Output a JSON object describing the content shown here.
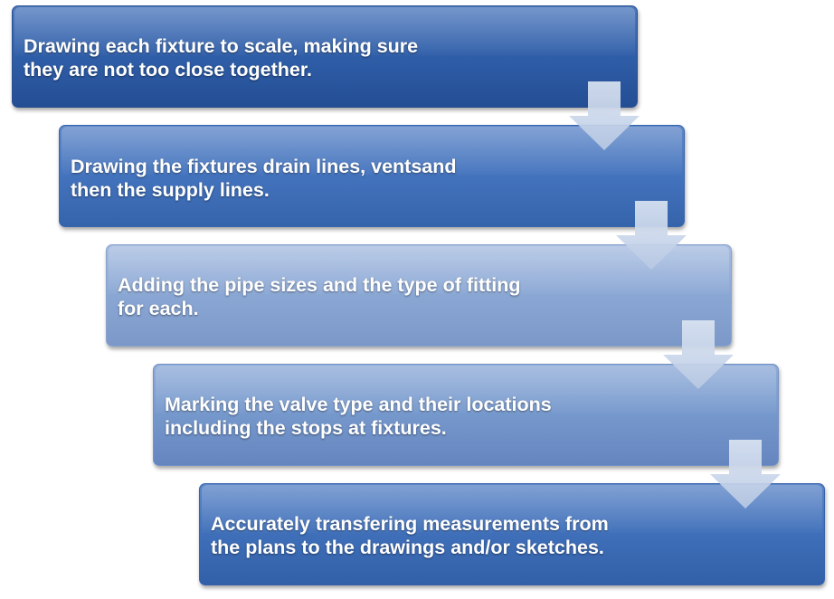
{
  "steps": [
    {
      "text": "Drawing each fixture to scale, making sure\nthey are not too close together."
    },
    {
      "text": "Drawing the fixtures drain lines, ventsand\nthen the supply lines."
    },
    {
      "text": "Adding the pipe sizes and the type of fitting\nfor each."
    },
    {
      "text": "Marking the valve type and their locations\nincluding the stops at fixtures."
    },
    {
      "text": "Accurately transfering measurements from\nthe plans to the drawings and/or sketches."
    }
  ],
  "colors": {
    "step_1": "#2f5ea8",
    "step_2": "#4373bd",
    "step_3": "#8aa7d4",
    "step_4": "#7598cc",
    "step_5": "#3f6fb9",
    "arrow": "#c9d6ea",
    "text": "#ffffff"
  },
  "icons": {
    "connector": "down-arrow-icon"
  }
}
